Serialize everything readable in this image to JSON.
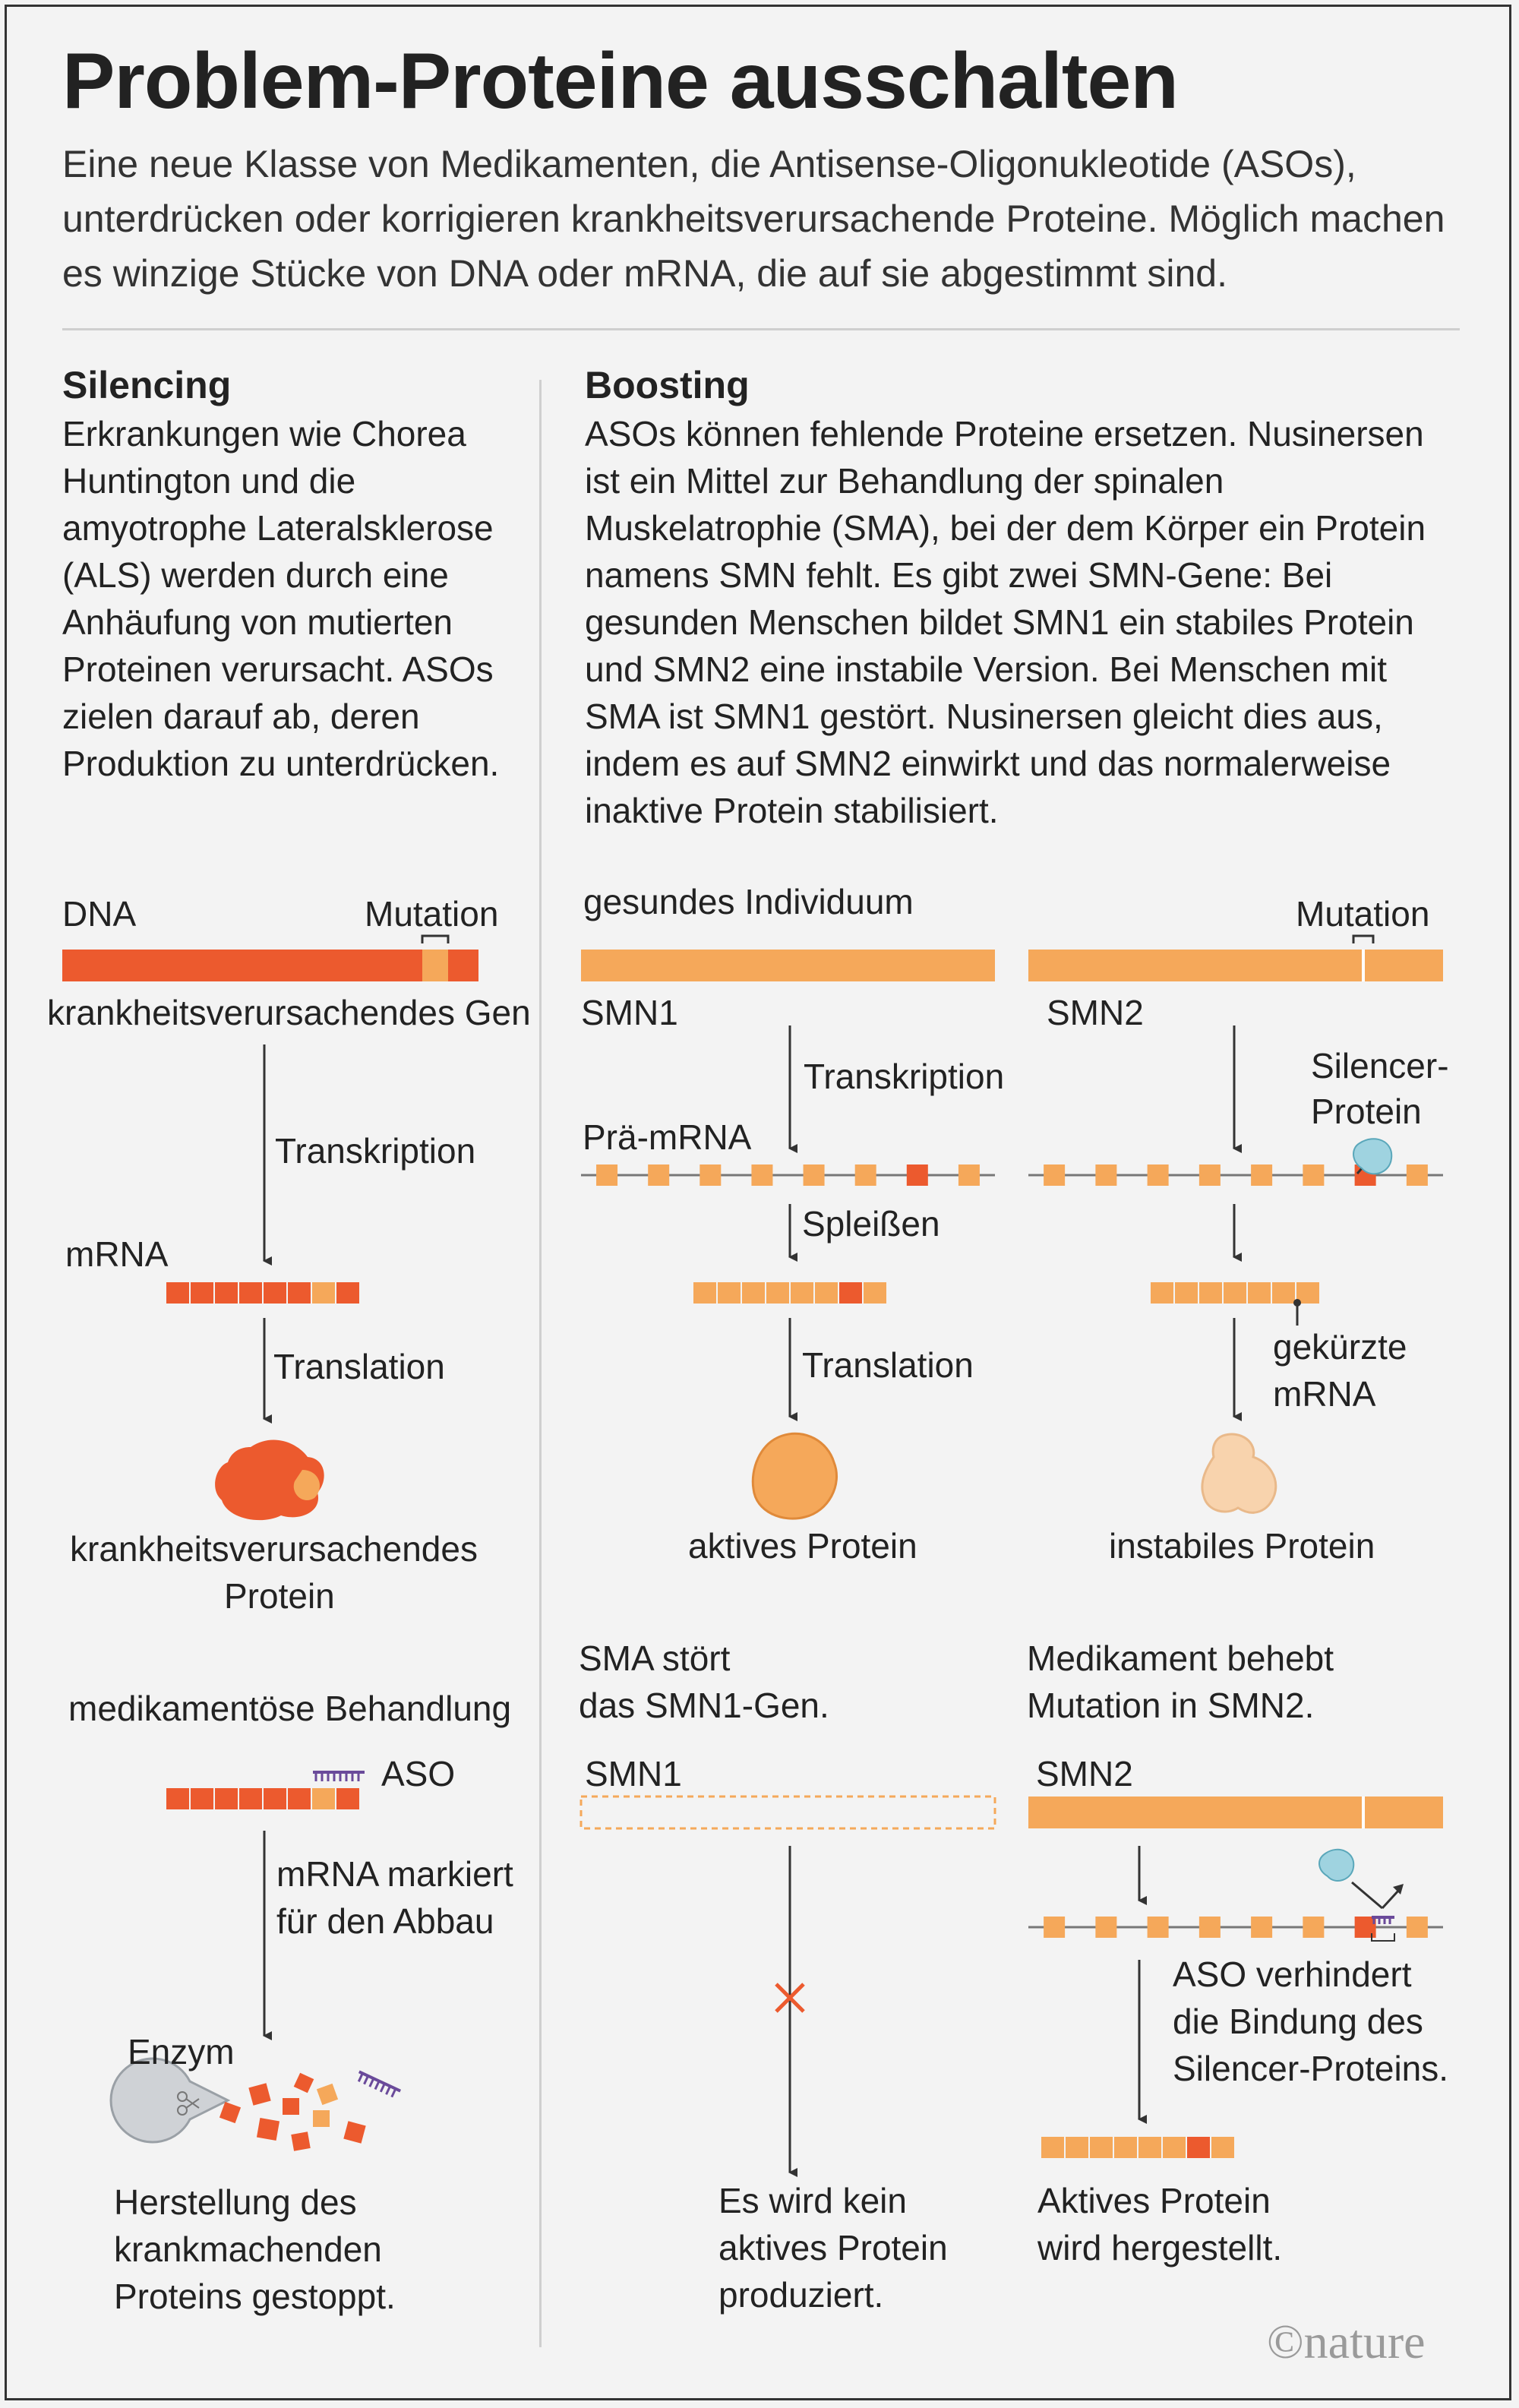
{
  "title": "Problem-Proteine ausschalten",
  "intro": "Eine neue Klasse von Medikamenten, die Antisense-Oligonukleotide (ASOs), unterdrücken oder korrigieren krankheitsverursachende Proteine. Möglich machen es winzige Stücke von DNA oder mRNA, die auf sie abgestimmt sind.",
  "silencing": {
    "heading": "Silencing",
    "text": "Erkrankungen wie Chorea Huntington und die amyotrophe Lateralsklerose (ALS) werden durch eine Anhäufung von mutierten Proteinen verursacht. ASOs zielen darauf ab, deren Produktion zu unterdrücken.",
    "dna": "DNA",
    "mutation": "Mutation",
    "gene": "krankheitsverursachendes Gen",
    "transcription": "Transkription",
    "mrna": "mRNA",
    "translation": "Translation",
    "protein_line1": "krankheitsverursachendes",
    "protein_line2": "Protein",
    "treatment": "medikamentöse Behandlung",
    "aso": "ASO",
    "marked_line1": "mRNA markiert",
    "marked_line2": "für den Abbau",
    "enzyme": "Enzym",
    "result_line1": "Herstellung des",
    "result_line2": "krankmachenden",
    "result_line3": "Proteins gestoppt."
  },
  "boosting": {
    "heading": "Boosting",
    "text": "ASOs können fehlende Proteine ersetzen. Nusinersen ist ein Mittel zur Behandlung der spinalen Muskelatrophie (SMA), bei der dem Körper ein Protein namens SMN fehlt. Es gibt zwei SMN-Gene: Bei gesunden Menschen bildet SMN1 ein stabiles Protein und SMN2 eine instabile Version. Bei Menschen mit SMA ist SMN1 gestört. Nusinersen gleicht dies aus, indem es auf SMN2 einwirkt und das normalerweise inaktive Protein stabilisiert.",
    "healthy": "gesundes Individuum",
    "mutation": "Mutation",
    "smn1": "SMN1",
    "smn2": "SMN2",
    "transcription": "Transkription",
    "pre_mrna": "Prä-mRNA",
    "silencer_line1": "Silencer-",
    "silencer_line2": "Protein",
    "splicing": "Spleißen",
    "translation": "Translation",
    "truncated_line1": "gekürzte",
    "truncated_line2": "mRNA",
    "active_protein": "aktives Protein",
    "unstable_protein": "instabiles Protein",
    "sma_line1": "SMA stört",
    "sma_line2": "das SMN1-Gen.",
    "drug_line1": "Medikament behebt",
    "drug_line2": "Mutation in SMN2.",
    "smn1_b": "SMN1",
    "smn2_b": "SMN2",
    "aso_line1": "ASO verhindert",
    "aso_line2": "die Bindung des",
    "aso_line3": "Silencer-Proteins.",
    "none_line1": "Es wird kein",
    "none_line2": "aktives Protein",
    "none_line3": "produziert.",
    "made_line1": "Aktives Protein",
    "made_line2": "wird hergestellt."
  },
  "logo": "©nature",
  "colors": {
    "dark_orange": "#ec5a2e",
    "light_orange": "#f5a85a",
    "pale_orange": "#f8d3ad",
    "aso_purple": "#6a4a9a",
    "silencer_blue": "#9fd3e0"
  }
}
